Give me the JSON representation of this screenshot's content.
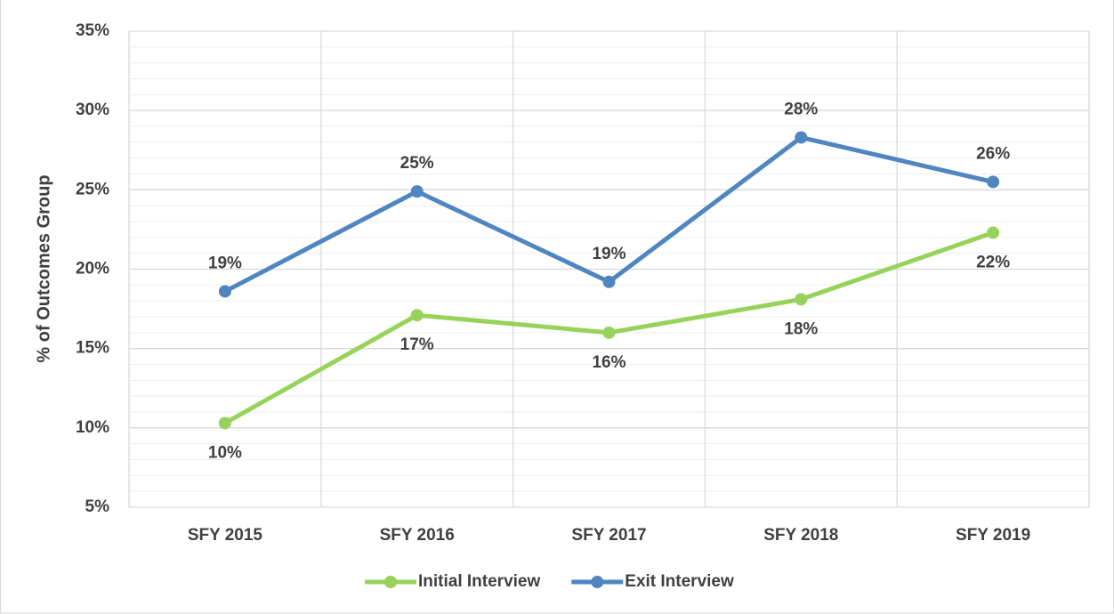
{
  "chart_data": {
    "type": "line",
    "y_label": "% of Outcomes Group",
    "categories": [
      "SFY 2015",
      "SFY 2016",
      "SFY 2017",
      "SFY 2018",
      "SFY 2019"
    ],
    "series": [
      {
        "name": "Initial Interview",
        "color": "#97d35a",
        "values": [
          10.3,
          17.1,
          16.0,
          18.1,
          22.3
        ],
        "value_labels": [
          "10%",
          "17%",
          "16%",
          "18%",
          "22%"
        ],
        "label_position": "below"
      },
      {
        "name": "Exit Interview",
        "color": "#4f86c0",
        "values": [
          18.6,
          24.9,
          19.2,
          28.3,
          25.5
        ],
        "value_labels": [
          "19%",
          "25%",
          "19%",
          "28%",
          "26%"
        ],
        "label_position": "above"
      }
    ],
    "ylim": [
      5,
      35
    ],
    "yticks": [
      {
        "value": 5,
        "label": "5%"
      },
      {
        "value": 10,
        "label": "10%"
      },
      {
        "value": 15,
        "label": "15%"
      },
      {
        "value": 20,
        "label": "20%"
      },
      {
        "value": 25,
        "label": "25%"
      },
      {
        "value": 30,
        "label": "30%"
      },
      {
        "value": 35,
        "label": "35%"
      }
    ],
    "minor_yticks": [
      6,
      7,
      8,
      9,
      11,
      12,
      13,
      14,
      16,
      17,
      18,
      19,
      21,
      22,
      23,
      24,
      26,
      27,
      28,
      29,
      31,
      32,
      33,
      34
    ],
    "grid": true,
    "legend": "bottom"
  }
}
